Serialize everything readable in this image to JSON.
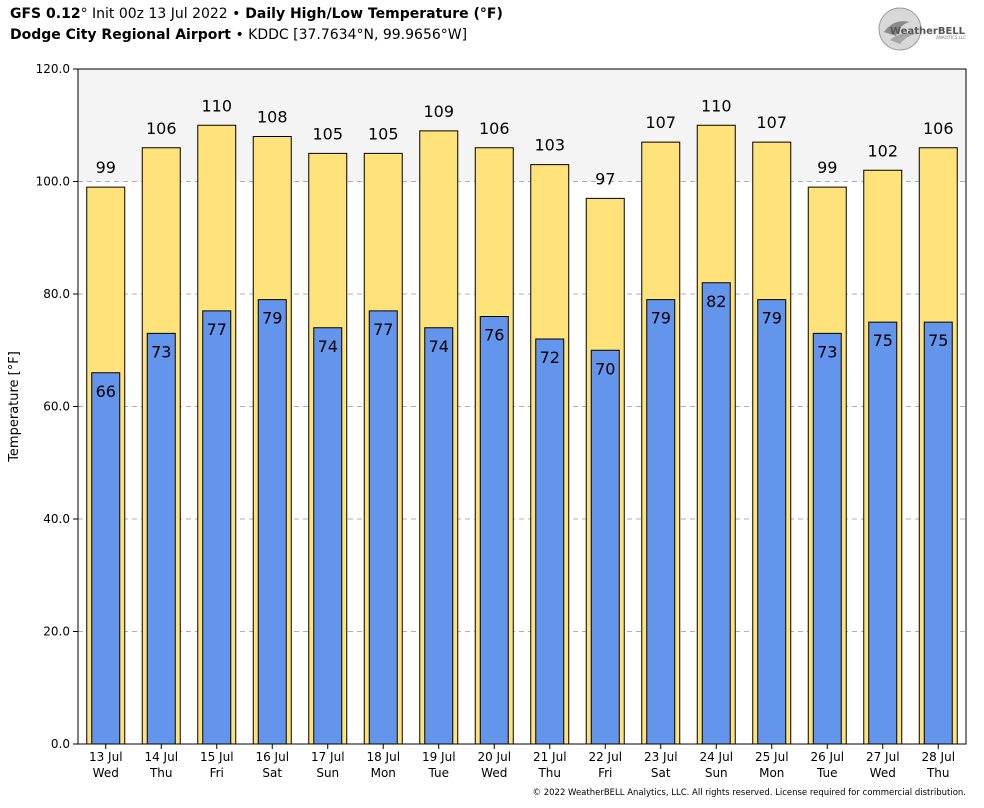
{
  "header": {
    "line1_model": "GFS 0.12",
    "line1_deg": "°",
    "line1_init": " Init 00z 13 Jul 2022 ",
    "line1_bullet": "•",
    "line1_title": " Daily High/Low Temperature (°F)",
    "line2_station": "Dodge City Regional Airport",
    "line2_bullet": " • ",
    "line2_coords": "KDDC [37.7634°N, 99.9656°W]"
  },
  "logo": {
    "text": "WeatherBELL",
    "sub": "ANALYTICS LLC"
  },
  "footer": {
    "copyright": "© 2022 WeatherBELL Analytics, LLC. All rights reserved. License required for commercial distribution."
  },
  "colors": {
    "high": "#ffe27a",
    "low": "#6495ed",
    "bar_edge": "#000000",
    "grid": "#b0b0b0",
    "plot_bg": "#f4f4f4"
  },
  "chart_data": {
    "type": "bar",
    "ylabel": "Temperature [°F]",
    "ylim": [
      0,
      120
    ],
    "yticks": [
      "0.0",
      "20.0",
      "40.0",
      "60.0",
      "80.0",
      "100.0",
      "120.0"
    ],
    "grid": true,
    "categories": [
      [
        "13 Jul",
        "Wed"
      ],
      [
        "14 Jul",
        "Thu"
      ],
      [
        "15 Jul",
        "Fri"
      ],
      [
        "16 Jul",
        "Sat"
      ],
      [
        "17 Jul",
        "Sun"
      ],
      [
        "18 Jul",
        "Mon"
      ],
      [
        "19 Jul",
        "Tue"
      ],
      [
        "20 Jul",
        "Wed"
      ],
      [
        "21 Jul",
        "Thu"
      ],
      [
        "22 Jul",
        "Fri"
      ],
      [
        "23 Jul",
        "Sat"
      ],
      [
        "24 Jul",
        "Sun"
      ],
      [
        "25 Jul",
        "Mon"
      ],
      [
        "26 Jul",
        "Tue"
      ],
      [
        "27 Jul",
        "Wed"
      ],
      [
        "28 Jul",
        "Thu"
      ]
    ],
    "series": [
      {
        "key": "high",
        "values": [
          99,
          106,
          110,
          108,
          105,
          105,
          109,
          106,
          103,
          97,
          107,
          110,
          107,
          99,
          102,
          106
        ]
      },
      {
        "key": "low",
        "values": [
          66,
          73,
          77,
          79,
          74,
          77,
          74,
          76,
          72,
          70,
          79,
          82,
          79,
          73,
          75,
          75
        ]
      }
    ],
    "high_labels": [
      "99",
      "106",
      "110",
      "108",
      "105",
      "105",
      "109",
      "106",
      "103",
      "97",
      "107",
      "110",
      "107",
      "99",
      "102",
      "106"
    ],
    "low_labels": [
      "66",
      "73",
      "77",
      "79",
      "74",
      "77",
      "74",
      "76",
      "72",
      "70",
      "79",
      "82",
      "79",
      "73",
      "75",
      "75"
    ]
  }
}
